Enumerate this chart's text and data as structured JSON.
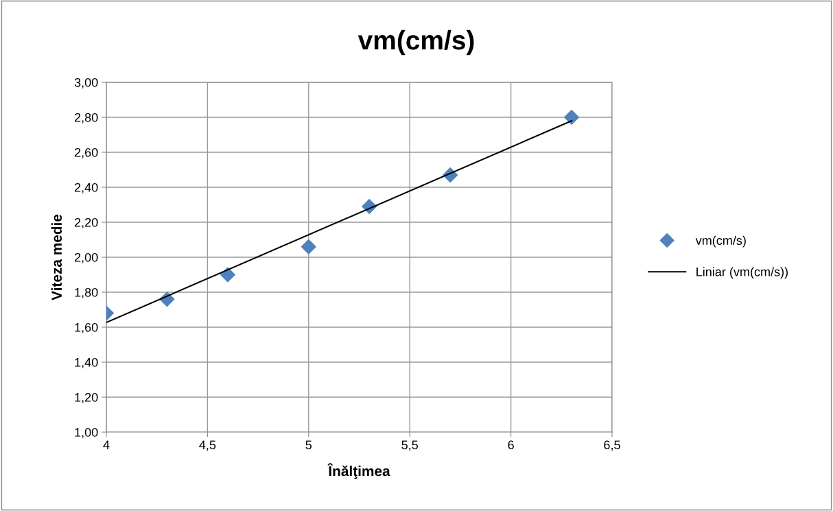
{
  "chart_data": {
    "type": "scatter",
    "title": "vm(cm/s)",
    "xlabel": "Înălţimea",
    "ylabel": "Viteza medie",
    "series": [
      {
        "name": "vm(cm/s)",
        "color": "#4f81bd",
        "marker": "diamond",
        "x": [
          4,
          4.3,
          4.6,
          5,
          5.3,
          5.7,
          6.3
        ],
        "values": [
          1.68,
          1.76,
          1.9,
          2.06,
          2.29,
          2.47,
          2.8
        ]
      },
      {
        "name": "Liniar (vm(cm/s))",
        "type": "line",
        "color": "#000000",
        "line_style": "solid",
        "x": [
          4,
          6.3
        ],
        "values": [
          1.627,
          2.78
        ]
      }
    ],
    "xlim": [
      4,
      6.5
    ],
    "xticks": [
      4,
      {
        "value": 4.5,
        "label": "4,5"
      },
      5,
      {
        "value": 5.5,
        "label": "5,5"
      },
      6,
      {
        "value": 6.5,
        "label": "6,5"
      }
    ],
    "ylim": [
      1,
      3
    ],
    "yticks": [
      {
        "value": 1,
        "label": "1,00"
      },
      {
        "value": 1.2,
        "label": "1,20"
      },
      {
        "value": 1.4,
        "label": "1,40"
      },
      {
        "value": 1.6,
        "label": "1,60"
      },
      {
        "value": 1.8,
        "label": "1,80"
      },
      {
        "value": 2,
        "label": "2,00"
      },
      {
        "value": 2.2,
        "label": "2,20"
      },
      {
        "value": 2.4,
        "label": "2,40"
      },
      {
        "value": 2.6,
        "label": "2,60"
      },
      {
        "value": 2.8,
        "label": "2,80"
      },
      {
        "value": 3,
        "label": "3,00"
      }
    ],
    "grid": true,
    "legend": "right"
  }
}
